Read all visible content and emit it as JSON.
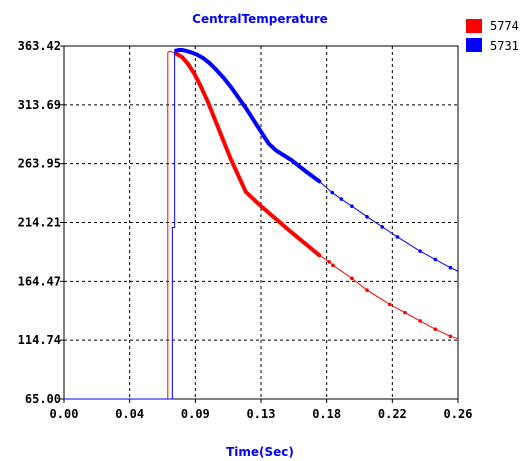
{
  "chart_data": {
    "type": "line",
    "title": "CentralTemperature",
    "xlabel": "Time(Sec)",
    "ylabel": "",
    "xlim": [
      0.0,
      0.26
    ],
    "ylim": [
      65.0,
      363.42
    ],
    "x_ticks": [
      "0.00",
      "0.04",
      "0.09",
      "0.13",
      "0.18",
      "0.22",
      "0.26"
    ],
    "y_ticks": [
      "65.00",
      "114.74",
      "164.47",
      "214.21",
      "263.95",
      "313.69",
      "363.42"
    ],
    "grid": true,
    "legend_position": "top-right",
    "series": [
      {
        "name": "5774",
        "color": "#ff0000",
        "x": [
          0.0,
          0.0685,
          0.0685,
          0.07,
          0.072,
          0.074,
          0.078,
          0.082,
          0.086,
          0.09,
          0.095,
          0.1,
          0.105,
          0.11,
          0.115,
          0.12,
          0.13,
          0.14,
          0.15,
          0.16,
          0.1685,
          0.175,
          0.1775,
          0.19,
          0.2,
          0.215,
          0.225,
          0.235,
          0.245,
          0.255,
          0.26
        ],
        "y": [
          65.0,
          65.0,
          358.0,
          359.0,
          358.0,
          357.0,
          354.0,
          348.0,
          340.0,
          330.0,
          316.0,
          300.0,
          284.0,
          268.0,
          254.0,
          240.0,
          228.0,
          217.0,
          206.0,
          195.5,
          186.5,
          181.0,
          178.0,
          167.0,
          157.0,
          145.0,
          138.0,
          131.0,
          124.0,
          118.0,
          116.0
        ]
      },
      {
        "name": "5731",
        "color": "#0000ff",
        "x": [
          0.0,
          0.0715,
          0.0715,
          0.073,
          0.073,
          0.074,
          0.076,
          0.078,
          0.08,
          0.084,
          0.088,
          0.092,
          0.096,
          0.1,
          0.105,
          0.11,
          0.115,
          0.12,
          0.125,
          0.13,
          0.135,
          0.14,
          0.15,
          0.16,
          0.1685,
          0.177,
          0.183,
          0.19,
          0.2,
          0.21,
          0.22,
          0.235,
          0.245,
          0.255,
          0.26
        ],
        "y": [
          65.0,
          65.0,
          210.0,
          210.0,
          358.0,
          359.5,
          360.0,
          360.0,
          359.5,
          358.0,
          356.0,
          353.0,
          349.0,
          344.0,
          337.0,
          329.0,
          320.0,
          311.0,
          301.0,
          291.0,
          281.0,
          275.0,
          267.0,
          257.0,
          249.0,
          239.5,
          234.0,
          228.0,
          219.0,
          210.5,
          202.0,
          190.0,
          183.0,
          176.0,
          173.0
        ]
      }
    ]
  }
}
